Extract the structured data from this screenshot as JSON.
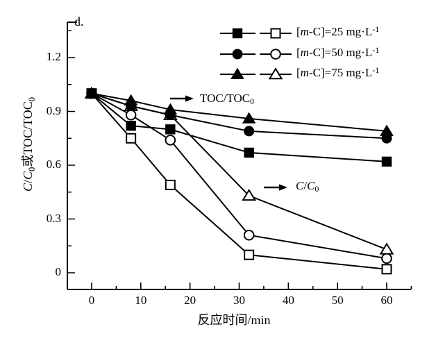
{
  "figure": {
    "panel_label": "d.",
    "background_color": "#ffffff",
    "ink_color": "#000000"
  },
  "axes": {
    "x_label": "反应时间/min",
    "y_label_text": "C/C0或TOC/TOC0",
    "y_label_parts": [
      {
        "text": "C",
        "italic": true
      },
      {
        "text": "/"
      },
      {
        "text": "C",
        "italic": true
      },
      {
        "text": "0",
        "sub": true
      },
      {
        "text": "或"
      },
      {
        "text": "TOC/TOC"
      },
      {
        "text": "0",
        "sub": true
      }
    ]
  },
  "annotations": [
    {
      "id": "toc-annotation",
      "text": "TOC/TOC0",
      "arrow": "right",
      "parts": [
        {
          "text": "TOC/TOC"
        },
        {
          "text": "0",
          "sub": true
        }
      ]
    },
    {
      "id": "c-annotation",
      "text": "C/C0",
      "arrow": "right",
      "parts": [
        {
          "text": "C",
          "italic": true
        },
        {
          "text": "/"
        },
        {
          "text": "C",
          "italic": true
        },
        {
          "text": "0",
          "sub": true
        }
      ]
    }
  ],
  "legend": {
    "entries": [
      {
        "marker": "square",
        "text": "[m-C]=25 mg·L-1",
        "parts": [
          {
            "text": "["
          },
          {
            "text": "m",
            "italic": true
          },
          {
            "text": "-C]=25 mg·L"
          },
          {
            "text": "-1",
            "sup": true
          }
        ]
      },
      {
        "marker": "circle",
        "text": "[m-C]=50 mg·L-1",
        "parts": [
          {
            "text": "["
          },
          {
            "text": "m",
            "italic": true
          },
          {
            "text": "-C]=50 mg·L"
          },
          {
            "text": "-1",
            "sup": true
          }
        ]
      },
      {
        "marker": "triangle",
        "text": "[m-C]=75 mg·L-1",
        "parts": [
          {
            "text": "["
          },
          {
            "text": "m",
            "italic": true
          },
          {
            "text": "-C]=75 mg·L"
          },
          {
            "text": "-1",
            "sup": true
          }
        ]
      }
    ]
  },
  "chart_data": {
    "type": "line",
    "x": [
      0,
      8,
      16,
      32,
      60
    ],
    "xlabel": "反应时间/min",
    "ylabel": "C/C0 或 TOC/TOC0",
    "xlim": [
      -5,
      65
    ],
    "ylim": [
      -0.09,
      1.4
    ],
    "grid": false,
    "x_major_ticks": [
      {
        "v": 0,
        "label": "0"
      },
      {
        "v": 10,
        "label": "10"
      },
      {
        "v": 20,
        "label": "20"
      },
      {
        "v": 30,
        "label": "30"
      },
      {
        "v": 40,
        "label": "40"
      },
      {
        "v": 50,
        "label": "50"
      },
      {
        "v": 60,
        "label": "60"
      }
    ],
    "x_minor_ticks": [
      5,
      15,
      25,
      35,
      45,
      55,
      65
    ],
    "y_major_ticks": [
      {
        "v": 0,
        "label": "0"
      },
      {
        "v": 0.3,
        "label": "0.3"
      },
      {
        "v": 0.6,
        "label": "0.6"
      },
      {
        "v": 0.9,
        "label": "0.9"
      },
      {
        "v": 1.2,
        "label": "1.2"
      }
    ],
    "y_minor_ticks": [
      0.15,
      0.45,
      0.75,
      1.05,
      1.35
    ],
    "series": [
      {
        "id": "toc-25",
        "name": "TOC/TOC0, [m-C]=25 mg/L",
        "marker": "square",
        "fill": "filled",
        "values": [
          1.0,
          0.82,
          0.8,
          0.67,
          0.62
        ]
      },
      {
        "id": "toc-50",
        "name": "TOC/TOC0, [m-C]=50 mg/L",
        "marker": "circle",
        "fill": "filled",
        "values": [
          1.0,
          0.93,
          0.88,
          0.79,
          0.75
        ]
      },
      {
        "id": "toc-75",
        "name": "TOC/TOC0, [m-C]=75 mg/L",
        "marker": "triangle",
        "fill": "filled",
        "values": [
          1.0,
          0.96,
          0.91,
          0.86,
          0.79
        ]
      },
      {
        "id": "c-25",
        "name": "C/C0, [m-C]=25 mg/L",
        "marker": "square",
        "fill": "open",
        "values": [
          1.0,
          0.75,
          0.49,
          0.1,
          0.02
        ]
      },
      {
        "id": "c-50",
        "name": "C/C0, [m-C]=50 mg/L",
        "marker": "circle",
        "fill": "open",
        "values": [
          1.0,
          0.88,
          0.74,
          0.21,
          0.08
        ]
      },
      {
        "id": "c-75",
        "name": "C/C0, [m-C]=75 mg/L",
        "marker": "triangle",
        "fill": "open",
        "values": [
          1.0,
          0.93,
          0.88,
          0.43,
          0.13
        ]
      }
    ]
  }
}
